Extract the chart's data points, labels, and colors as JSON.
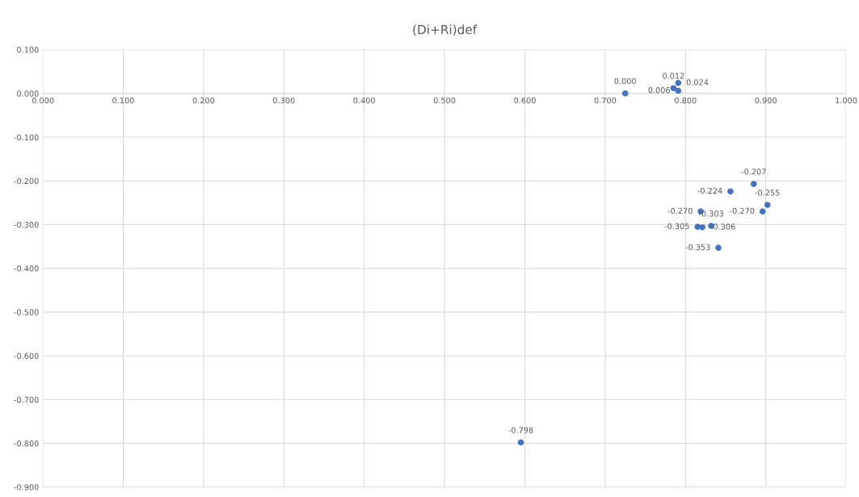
{
  "chart_data": {
    "type": "scatter",
    "title": "(Di+Ri)def",
    "series": [
      {
        "color": "#4472c4",
        "x": [
          0.725,
          0.785,
          0.791,
          0.791,
          0.885,
          0.902,
          0.856,
          0.896,
          0.819,
          0.815,
          0.821,
          0.832,
          0.841,
          0.595
        ],
        "values": [
          0.0,
          0.012,
          0.024,
          0.006,
          -0.207,
          -0.255,
          -0.224,
          -0.27,
          -0.27,
          -0.305,
          -0.306,
          -0.303,
          -0.353,
          -0.798
        ],
        "value_labels": [
          "0.000",
          "0.012",
          "0.024",
          "0.006",
          "-0.207",
          "-0.255",
          "-0.224",
          "-0.270",
          "-0.270",
          "-0.305",
          "-0.306",
          "-0.303",
          "-0.353",
          "-0.798"
        ]
      }
    ],
    "xlim": [
      0,
      1
    ],
    "xticks": [
      {
        "value": 0,
        "label": "0.000"
      },
      {
        "value": 0.1,
        "label": "0.100"
      },
      {
        "value": 0.2,
        "label": "0.200"
      },
      {
        "value": 0.3,
        "label": "0.300"
      },
      {
        "value": 0.4,
        "label": "0.400"
      },
      {
        "value": 0.5,
        "label": "0.500"
      },
      {
        "value": 0.6,
        "label": "0.600"
      },
      {
        "value": 0.7,
        "label": "0.700"
      },
      {
        "value": 0.8,
        "label": "0.800"
      },
      {
        "value": 0.9,
        "label": "0.900"
      },
      {
        "value": 1,
        "label": "1.000"
      }
    ],
    "ylim": [
      -0.9,
      0.1
    ],
    "yticks": [
      {
        "value": 0.1,
        "label": "0.100"
      },
      {
        "value": 0,
        "label": "0.000"
      },
      {
        "value": -0.1,
        "label": "-0.100"
      },
      {
        "value": -0.2,
        "label": "-0.200"
      },
      {
        "value": -0.3,
        "label": "-0.300"
      },
      {
        "value": -0.4,
        "label": "-0.400"
      },
      {
        "value": -0.5,
        "label": "-0.500"
      },
      {
        "value": -0.6,
        "label": "-0.600"
      },
      {
        "value": -0.7,
        "label": "-0.700"
      },
      {
        "value": -0.8,
        "label": "-0.800"
      },
      {
        "value": -0.9,
        "label": "-0.900"
      }
    ],
    "grid": true,
    "marker": "circle",
    "legend": false
  }
}
